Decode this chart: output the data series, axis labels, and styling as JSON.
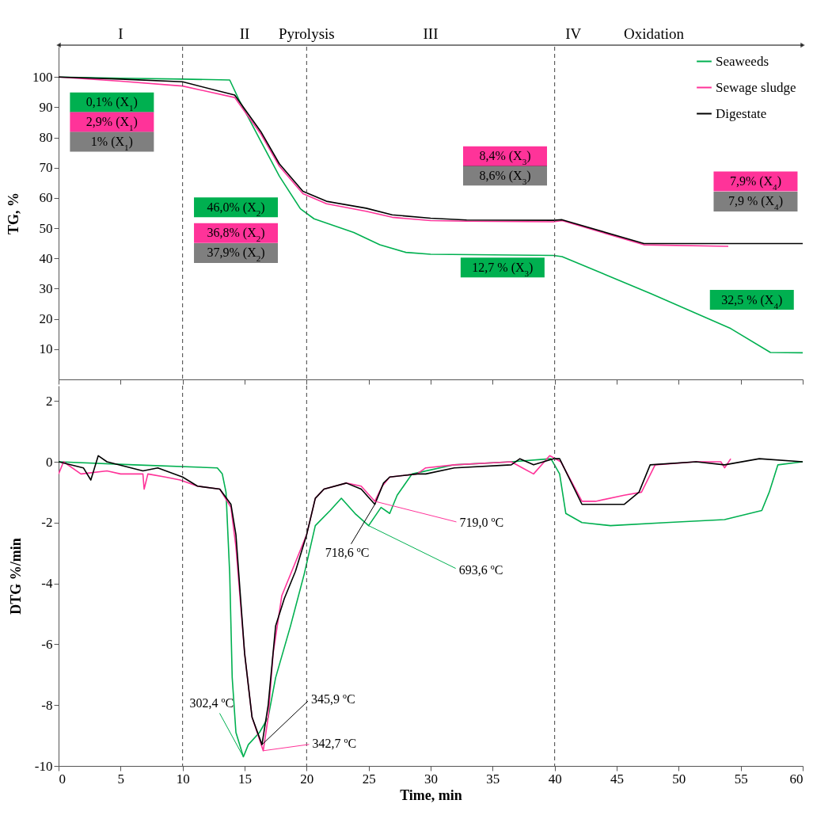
{
  "chart_data": [
    {
      "type": "line",
      "ylabel": "TG, %",
      "xlim": [
        0,
        60
      ],
      "xticks": [
        0,
        5,
        10,
        15,
        20,
        25,
        30,
        35,
        40,
        45,
        50,
        55,
        60
      ],
      "ylim": [
        0,
        110
      ],
      "yticks": [
        10,
        20,
        30,
        40,
        50,
        60,
        70,
        80,
        90,
        100
      ],
      "tick_labels": "y",
      "legend": "top right",
      "series": [
        {
          "name": "Seaweeds",
          "color": "#00b050",
          "x": [
            0,
            5,
            10,
            13.8,
            14.6,
            16.3,
            17.8,
            19.5,
            20.6,
            23.8,
            25.9,
            28,
            30,
            35,
            39.9,
            40.6,
            47.8,
            54.2,
            57.4,
            60
          ],
          "values": [
            100,
            99.6,
            99.3,
            99,
            92,
            78.8,
            67.2,
            56.4,
            53.1,
            48.6,
            44.5,
            42,
            41.4,
            41.2,
            41,
            40.6,
            28.3,
            16.8,
            8.9,
            8.8
          ]
        },
        {
          "name": "Sewage sludge",
          "color": "#ff3399",
          "x": [
            0,
            5,
            10,
            14.2,
            16.3,
            17.8,
            19.7,
            21.6,
            24.8,
            26.9,
            30,
            32.9,
            39.9,
            40.6,
            47.2,
            54
          ],
          "values": [
            100,
            98.6,
            97,
            93.2,
            81.2,
            70.5,
            61.4,
            58.1,
            55.6,
            53.6,
            52.5,
            52.3,
            52.1,
            52.5,
            44.5,
            44
          ]
        },
        {
          "name": "Digestate",
          "color": "#000000",
          "x": [
            0,
            5,
            10,
            14.2,
            16.3,
            17.8,
            19.7,
            21.6,
            24.8,
            26.9,
            30,
            32.9,
            39.9,
            40.6,
            47.2,
            60
          ],
          "values": [
            100,
            99.3,
            98.4,
            94,
            82,
            71.3,
            62.2,
            58.9,
            56.6,
            54.4,
            53.3,
            52.7,
            52.6,
            52.8,
            44.9,
            44.9
          ]
        }
      ],
      "ref_lines": [
        {
          "axis": "x",
          "value": 10,
          "color": "#404040",
          "line_style": "dashed"
        },
        {
          "axis": "x",
          "value": 20,
          "color": "#404040",
          "line_style": "dashed"
        },
        {
          "axis": "x",
          "value": 40,
          "color": "#404040",
          "line_style": "dashed"
        }
      ],
      "annotations": [
        "I",
        "II",
        "Pyrolysis",
        "III",
        "IV",
        "Oxidation",
        "0,1% (X$_{1}$)",
        "2,9% (X$_{1}$)",
        "1% (X$_{1}$)",
        "46,0% (X$_{2}$)",
        "36,8% (X$_{2}$)",
        "37,9% (X$_{2}$)",
        "12,7 % (X$_{3}$)",
        "8,4% (X$_{3}$)",
        "8,6% (X$_{3}$)",
        "32,5 % (X$_{4}$)",
        "7,9% (X$_{4}$)",
        "7,9 % (X$_{4}$)"
      ]
    },
    {
      "type": "line",
      "xlabel": "Time, min",
      "ylabel": "DTG %/min",
      "xlim": [
        0,
        60
      ],
      "xticks": [
        0,
        5,
        10,
        15,
        20,
        25,
        30,
        35,
        40,
        45,
        50,
        55,
        60
      ],
      "ylim": [
        -10,
        2.5
      ],
      "yticks": [
        -10,
        -8,
        -6,
        -4,
        -2,
        0,
        2
      ],
      "series": [
        {
          "color": "#00b050",
          "x": [
            0,
            6.1,
            12.8,
            13.2,
            13.5,
            13.8,
            14,
            14.3,
            14.9,
            15.3,
            16.2,
            16.9,
            17.5,
            18.7,
            19.8,
            20.7,
            21.9,
            22.8,
            23.9,
            25,
            26,
            26.7,
            27.3,
            28.5,
            31.9,
            36.5,
            39.7,
            40.4,
            40.9,
            42.2,
            44.5,
            49,
            53.7,
            56.7,
            57.3,
            58,
            60
          ],
          "values": [
            0,
            -0.1,
            -0.2,
            -0.4,
            -1,
            -3.7,
            -7.1,
            -8.9,
            -9.7,
            -9.3,
            -8.9,
            -8.4,
            -7.1,
            -5.4,
            -3.7,
            -2.1,
            -1.6,
            -1.2,
            -1.7,
            -2.1,
            -1.5,
            -1.7,
            -1.1,
            -0.4,
            -0.1,
            0,
            0.1,
            -0.4,
            -1.7,
            -2,
            -2.1,
            -2,
            -1.9,
            -1.6,
            -1,
            -0.1,
            0
          ]
        },
        {
          "color": "#ff3399",
          "x": [
            0,
            0.4,
            1.8,
            3.9,
            5,
            6.8,
            6.9,
            7.2,
            8.6,
            9.8,
            11.2,
            13,
            13.9,
            14.3,
            15,
            15.6,
            16.5,
            16.9,
            17.3,
            18,
            19.1,
            20,
            20.7,
            21.4,
            23.2,
            24.4,
            25.5,
            26.1,
            26.7,
            28.9,
            29.6,
            31.9,
            36.5,
            37.4,
            38.3,
            39.6,
            40.5,
            42.2,
            43.3,
            45.6,
            47,
            48.1,
            51.4,
            53.4,
            53.7,
            54.2
          ],
          "values": [
            -0.4,
            0,
            -0.4,
            -0.3,
            -0.4,
            -0.4,
            -0.9,
            -0.4,
            -0.5,
            -0.6,
            -0.8,
            -0.9,
            -1.5,
            -2.8,
            -6.3,
            -8.4,
            -9.5,
            -8.4,
            -6.3,
            -4.4,
            -3.3,
            -2.4,
            -1.2,
            -0.9,
            -0.7,
            -0.8,
            -1.3,
            -0.8,
            -0.5,
            -0.4,
            -0.2,
            -0.1,
            0,
            -0.2,
            -0.4,
            0.2,
            0,
            -1.3,
            -1.3,
            -1.1,
            -1,
            -0.1,
            0,
            0,
            -0.2,
            0.1
          ]
        },
        {
          "color": "#000000",
          "x": [
            0,
            2,
            2.6,
            3.2,
            3.9,
            6.8,
            8,
            10,
            11.2,
            13,
            13.9,
            14.3,
            15,
            15.6,
            16.4,
            16.9,
            17.5,
            18.2,
            19.1,
            20,
            20.7,
            21.4,
            23.2,
            24.4,
            25.5,
            26.2,
            26.7,
            28.9,
            29.6,
            31.9,
            36.5,
            37.2,
            38.3,
            39.9,
            40.4,
            42.2,
            43.3,
            45.6,
            46.8,
            47.7,
            51.4,
            53.7,
            56.5,
            60
          ],
          "values": [
            0,
            -0.2,
            -0.6,
            0.2,
            0,
            -0.3,
            -0.2,
            -0.5,
            -0.8,
            -0.9,
            -1.4,
            -2.4,
            -6.3,
            -8.4,
            -9.3,
            -8,
            -5.4,
            -4.5,
            -3.6,
            -2.4,
            -1.2,
            -0.9,
            -0.7,
            -0.9,
            -1.4,
            -0.7,
            -0.5,
            -0.4,
            -0.4,
            -0.2,
            -0.1,
            0.1,
            -0.1,
            0.1,
            0.1,
            -1.4,
            -1.4,
            -1.4,
            -1,
            -0.1,
            0,
            -0.1,
            0.1,
            0
          ]
        }
      ],
      "ref_lines": [
        {
          "axis": "x",
          "value": 10,
          "color": "#404040",
          "line_style": "dashed"
        },
        {
          "axis": "x",
          "value": 20,
          "color": "#404040",
          "line_style": "dashed"
        },
        {
          "axis": "x",
          "value": 40,
          "color": "#404040",
          "line_style": "dashed"
        }
      ],
      "annotations": [
        {
          "text": "302,4 ºC",
          "x": 14.9,
          "y": -9.7
        },
        {
          "text": "342,7 ºC",
          "x": 16.5,
          "y": -9.5
        },
        {
          "text": "345,9 ºC",
          "x": 16.4,
          "y": -9.3
        },
        {
          "text": "693,6 ºC",
          "x": 25,
          "y": -2.1
        },
        {
          "text": "719,0 ºC",
          "x": 25.5,
          "y": -1.3
        },
        {
          "text": "718,6 ºC",
          "x": 25.5,
          "y": -1.4
        }
      ]
    }
  ]
}
